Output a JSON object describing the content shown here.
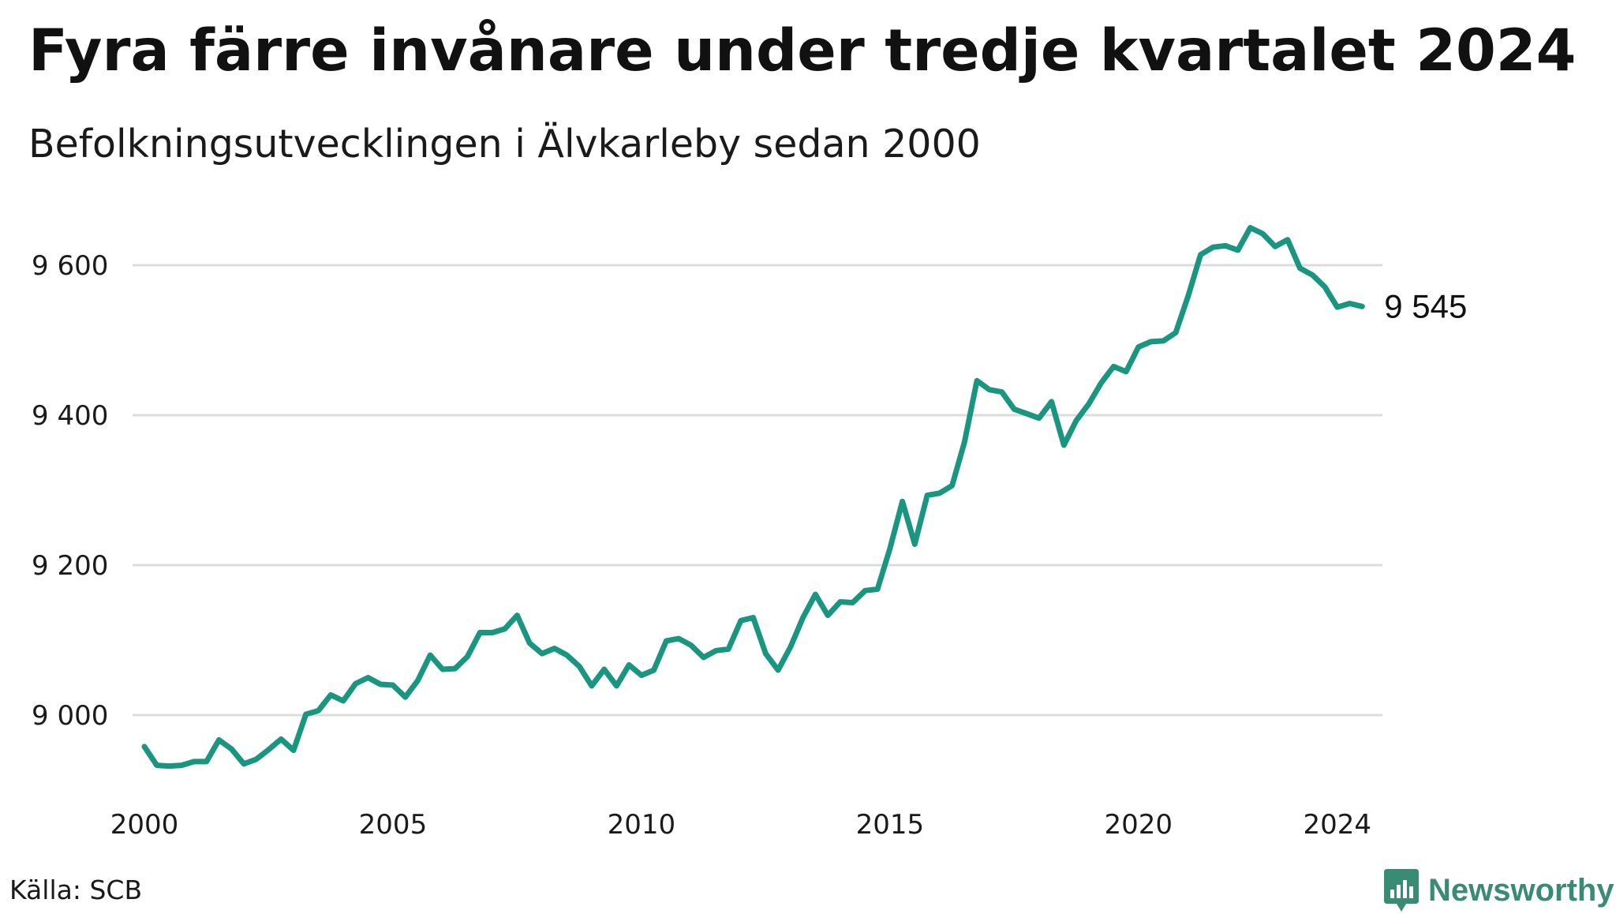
{
  "header": {
    "title": "Fyra färre invånare under tredje kvartalet 2024",
    "subtitle": "Befolkningsutvecklingen i Älvkarleby sedan 2000"
  },
  "footer": {
    "source": "Källa: SCB",
    "brand": "Newsworthy",
    "brand_icon": "bar-chart-logo-icon",
    "brand_color": "#3a8b74"
  },
  "chart_data": {
    "type": "line",
    "title": "Fyra färre invånare under tredje kvartalet 2024",
    "subtitle": "Befolkningsutvecklingen i Älvkarleby sedan 2000",
    "xlabel": "",
    "ylabel": "",
    "xlim": [
      2000,
      2024.75
    ],
    "ylim": [
      8900,
      9660
    ],
    "x_ticks": [
      2000,
      2005,
      2010,
      2015,
      2020,
      2024
    ],
    "x_tick_labels": [
      "2000",
      "2005",
      "2010",
      "2015",
      "2020",
      "2024"
    ],
    "y_ticks": [
      9000,
      9200,
      9400,
      9600
    ],
    "y_tick_labels": [
      "9 000",
      "9 200",
      "9 400",
      "9 600"
    ],
    "grid": "horizontal",
    "line_color": "#1a9680",
    "end_label": "9 545",
    "series": [
      {
        "period_start": "2000 Q1",
        "frequency": "quarterly",
        "values": [
          8958,
          8933,
          8932,
          8933,
          8938,
          8938,
          8967,
          8955,
          8935,
          8941,
          8954,
          8968,
          8953,
          9001,
          9006,
          9027,
          9019,
          9042,
          9050,
          9041,
          9040,
          9024,
          9046,
          9080,
          9061,
          9062,
          9078,
          9110,
          9110,
          9115,
          9133,
          9096,
          9082,
          9089,
          9080,
          9065,
          9039,
          9061,
          9039,
          9067,
          9053,
          9060,
          9099,
          9102,
          9093,
          9077,
          9086,
          9088,
          9126,
          9130,
          9082,
          9060,
          9091,
          9130,
          9161,
          9133,
          9151,
          9150,
          9166,
          9168,
          9222,
          9285,
          9228,
          9293,
          9296,
          9306,
          9364,
          9446,
          9434,
          9431,
          9408,
          9402,
          9396,
          9418,
          9360,
          9393,
          9415,
          9443,
          9465,
          9458,
          9491,
          9498,
          9499,
          9510,
          9559,
          9614,
          9624,
          9626,
          9620,
          9650,
          9642,
          9625,
          9634,
          9596,
          9587,
          9571,
          9544,
          9549,
          9545
        ]
      }
    ]
  }
}
